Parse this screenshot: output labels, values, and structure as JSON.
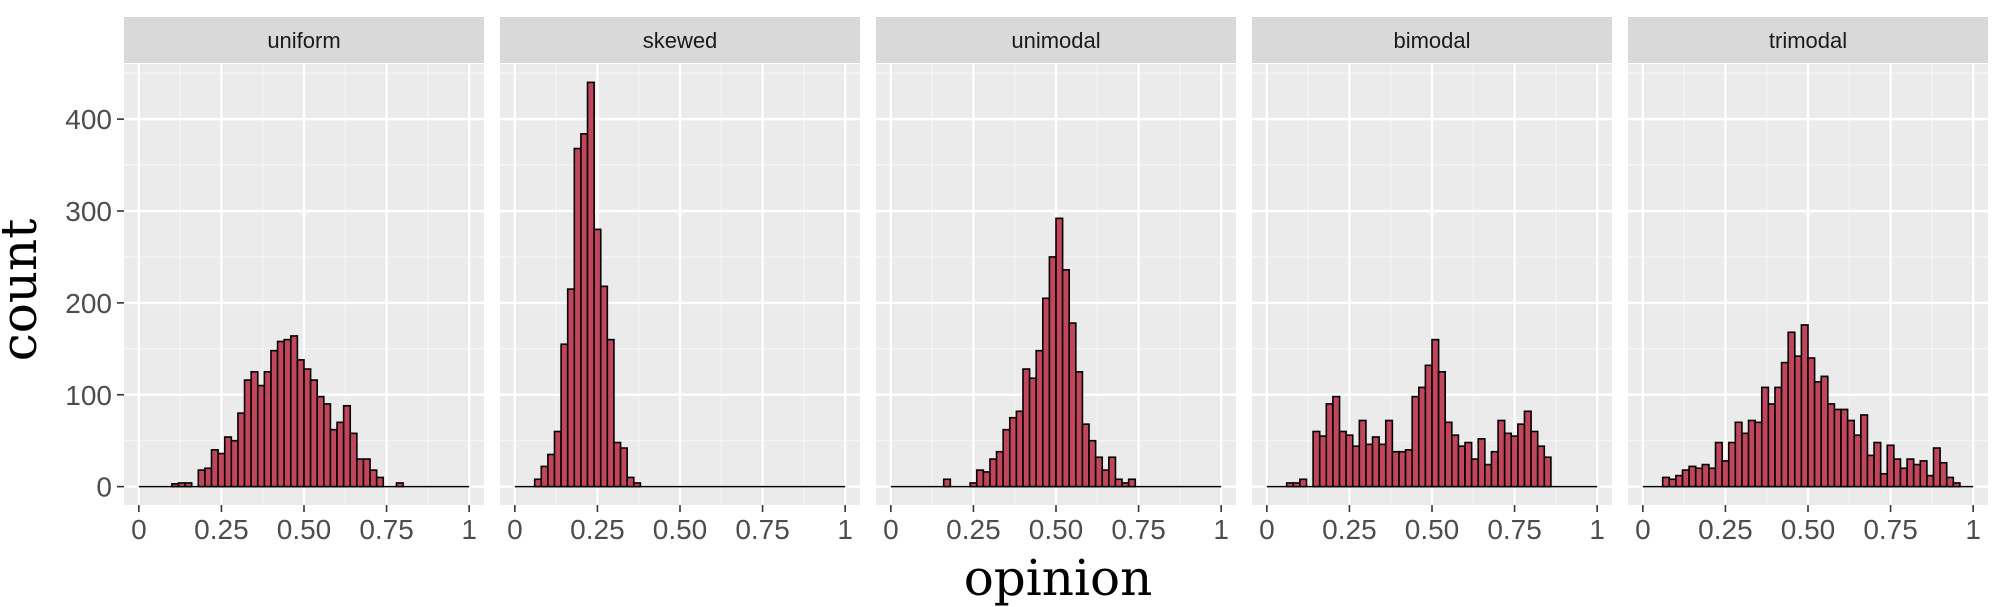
{
  "chart_data": {
    "type": "bar",
    "xlabel": "opinion",
    "ylabel": "count",
    "xlim": [
      0,
      1
    ],
    "ylim": [
      -20,
      460
    ],
    "bin_width": 0.02,
    "bin_start": 0.02,
    "x_ticks": [
      {
        "value": 0,
        "label": "0"
      },
      {
        "value": 0.25,
        "label": "0.25"
      },
      {
        "value": 0.5,
        "label": "0.50"
      },
      {
        "value": 0.75,
        "label": "0.75"
      },
      {
        "value": 1,
        "label": "1"
      }
    ],
    "y_ticks": [
      {
        "value": 0,
        "label": "0"
      },
      {
        "value": 100,
        "label": "100"
      },
      {
        "value": 200,
        "label": "200"
      },
      {
        "value": 300,
        "label": "300"
      },
      {
        "value": 400,
        "label": "400"
      }
    ],
    "grid": true,
    "panels": [
      {
        "name": "uniform",
        "values": [
          0,
          0,
          0,
          0,
          3,
          4,
          4,
          0,
          18,
          20,
          40,
          36,
          54,
          50,
          80,
          116,
          125,
          110,
          125,
          148,
          158,
          160,
          164,
          138,
          128,
          116,
          98,
          90,
          62,
          70,
          88,
          58,
          30,
          30,
          18,
          10,
          0,
          0,
          4,
          0,
          0,
          0,
          0,
          0,
          0,
          0,
          0,
          0,
          0
        ]
      },
      {
        "name": "skewed",
        "values": [
          0,
          0,
          8,
          22,
          35,
          60,
          155,
          215,
          368,
          384,
          440,
          280,
          218,
          160,
          48,
          42,
          10,
          4,
          0,
          0,
          0,
          0,
          0,
          0,
          0,
          0,
          0,
          0,
          0,
          0,
          0,
          0,
          0,
          0,
          0,
          0,
          0,
          0,
          0,
          0,
          0,
          0,
          0,
          0,
          0,
          0,
          0,
          0,
          0
        ]
      },
      {
        "name": "unimodal",
        "values": [
          0,
          0,
          0,
          0,
          0,
          0,
          0,
          8,
          0,
          0,
          0,
          4,
          18,
          16,
          30,
          38,
          62,
          75,
          82,
          128,
          118,
          148,
          205,
          250,
          292,
          236,
          178,
          125,
          68,
          50,
          32,
          18,
          32,
          8,
          4,
          8,
          0,
          0,
          0,
          0,
          0,
          0,
          0,
          0,
          0,
          0,
          0,
          0,
          0
        ]
      },
      {
        "name": "bimodal",
        "values": [
          0,
          0,
          4,
          4,
          8,
          0,
          60,
          55,
          90,
          98,
          60,
          56,
          44,
          72,
          46,
          54,
          46,
          72,
          38,
          38,
          40,
          98,
          108,
          132,
          160,
          125,
          70,
          56,
          44,
          48,
          30,
          52,
          24,
          38,
          72,
          58,
          55,
          68,
          82,
          60,
          44,
          32,
          0,
          0,
          0,
          0,
          0,
          0,
          0
        ]
      },
      {
        "name": "trimodal",
        "values": [
          0,
          0,
          10,
          8,
          12,
          18,
          22,
          20,
          24,
          20,
          48,
          28,
          48,
          70,
          58,
          72,
          70,
          108,
          90,
          108,
          135,
          168,
          142,
          176,
          140,
          114,
          120,
          90,
          84,
          84,
          72,
          56,
          78,
          34,
          48,
          14,
          45,
          30,
          20,
          30,
          24,
          28,
          12,
          42,
          26,
          10,
          4,
          0,
          0
        ]
      }
    ]
  },
  "colors": {
    "bar_fill": "#c1465c",
    "bar_stroke": "#000000",
    "panel_bg": "#ebebeb",
    "strip_bg": "#d9d9d9",
    "grid_major": "#ffffff",
    "grid_minor": "#f5f5f5",
    "tick": "#333333"
  }
}
